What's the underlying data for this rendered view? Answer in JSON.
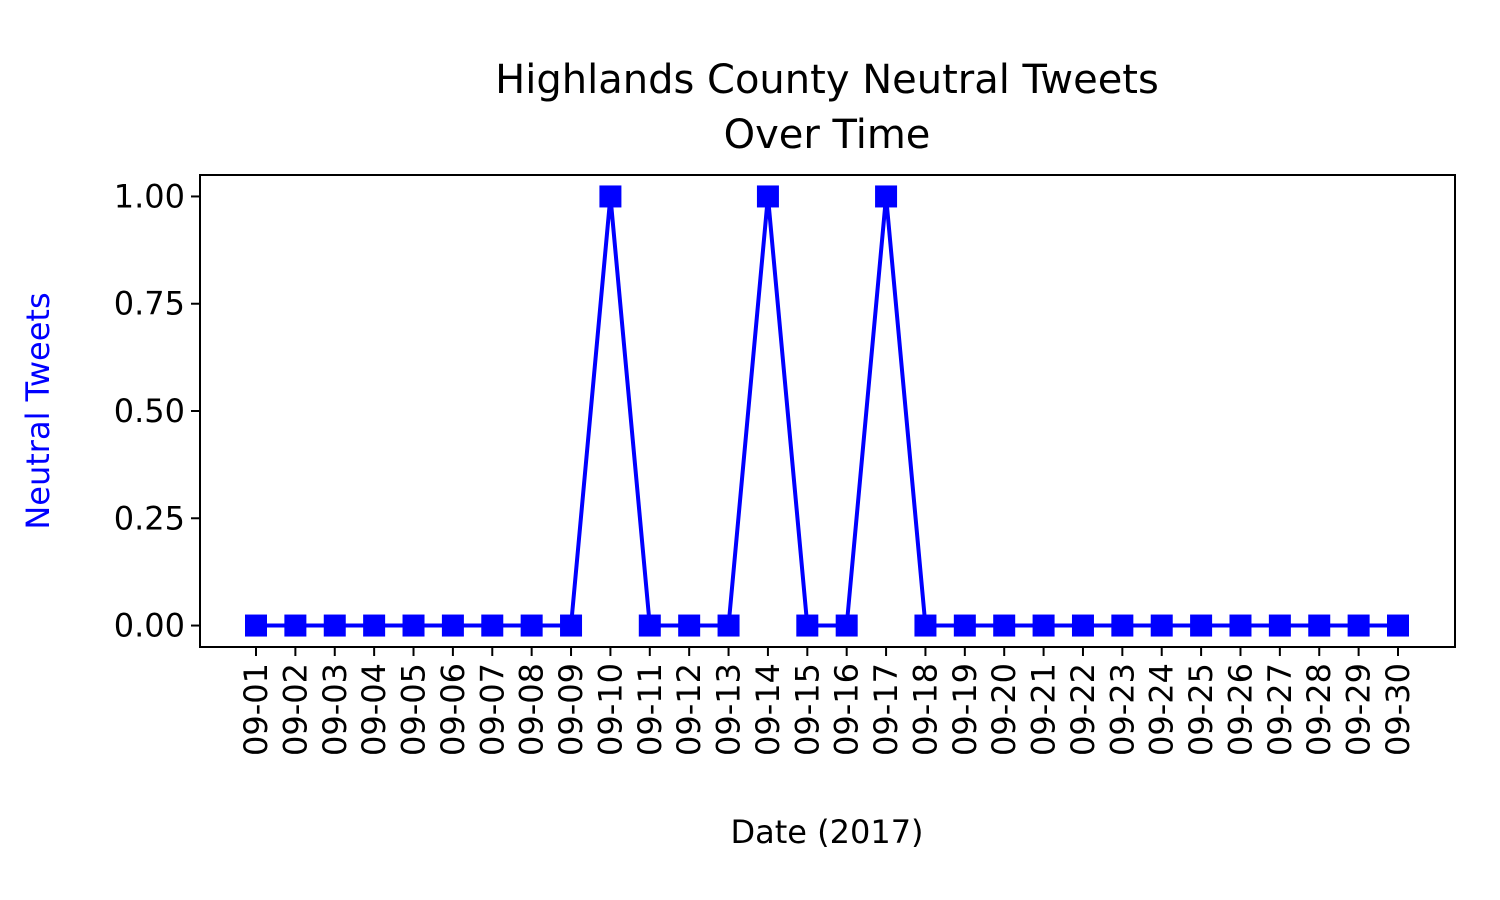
{
  "chart_data": {
    "type": "line",
    "title_line1": "Highlands County Neutral Tweets",
    "title_line2": "Over Time",
    "xlabel": "Date (2017)",
    "ylabel": "Neutral Tweets",
    "ylabel_color": "#0000ff",
    "series_color": "#0000ff",
    "marker": "square",
    "grid": false,
    "ylim": [
      -0.05,
      1.05
    ],
    "yticks": [
      0.0,
      0.25,
      0.5,
      0.75,
      1.0
    ],
    "ytick_labels": [
      "0.00",
      "0.25",
      "0.50",
      "0.75",
      "1.00"
    ],
    "categories": [
      "09-01",
      "09-02",
      "09-03",
      "09-04",
      "09-05",
      "09-06",
      "09-07",
      "09-08",
      "09-09",
      "09-10",
      "09-11",
      "09-12",
      "09-13",
      "09-14",
      "09-15",
      "09-16",
      "09-17",
      "09-18",
      "09-19",
      "09-20",
      "09-21",
      "09-22",
      "09-23",
      "09-24",
      "09-25",
      "09-26",
      "09-27",
      "09-28",
      "09-29",
      "09-30"
    ],
    "series": [
      {
        "name": "Neutral Tweets",
        "values": [
          0,
          0,
          0,
          0,
          0,
          0,
          0,
          0,
          0,
          1,
          0,
          0,
          0,
          1,
          0,
          0,
          1,
          0,
          0,
          0,
          0,
          0,
          0,
          0,
          0,
          0,
          0,
          0,
          0,
          0
        ]
      }
    ]
  }
}
